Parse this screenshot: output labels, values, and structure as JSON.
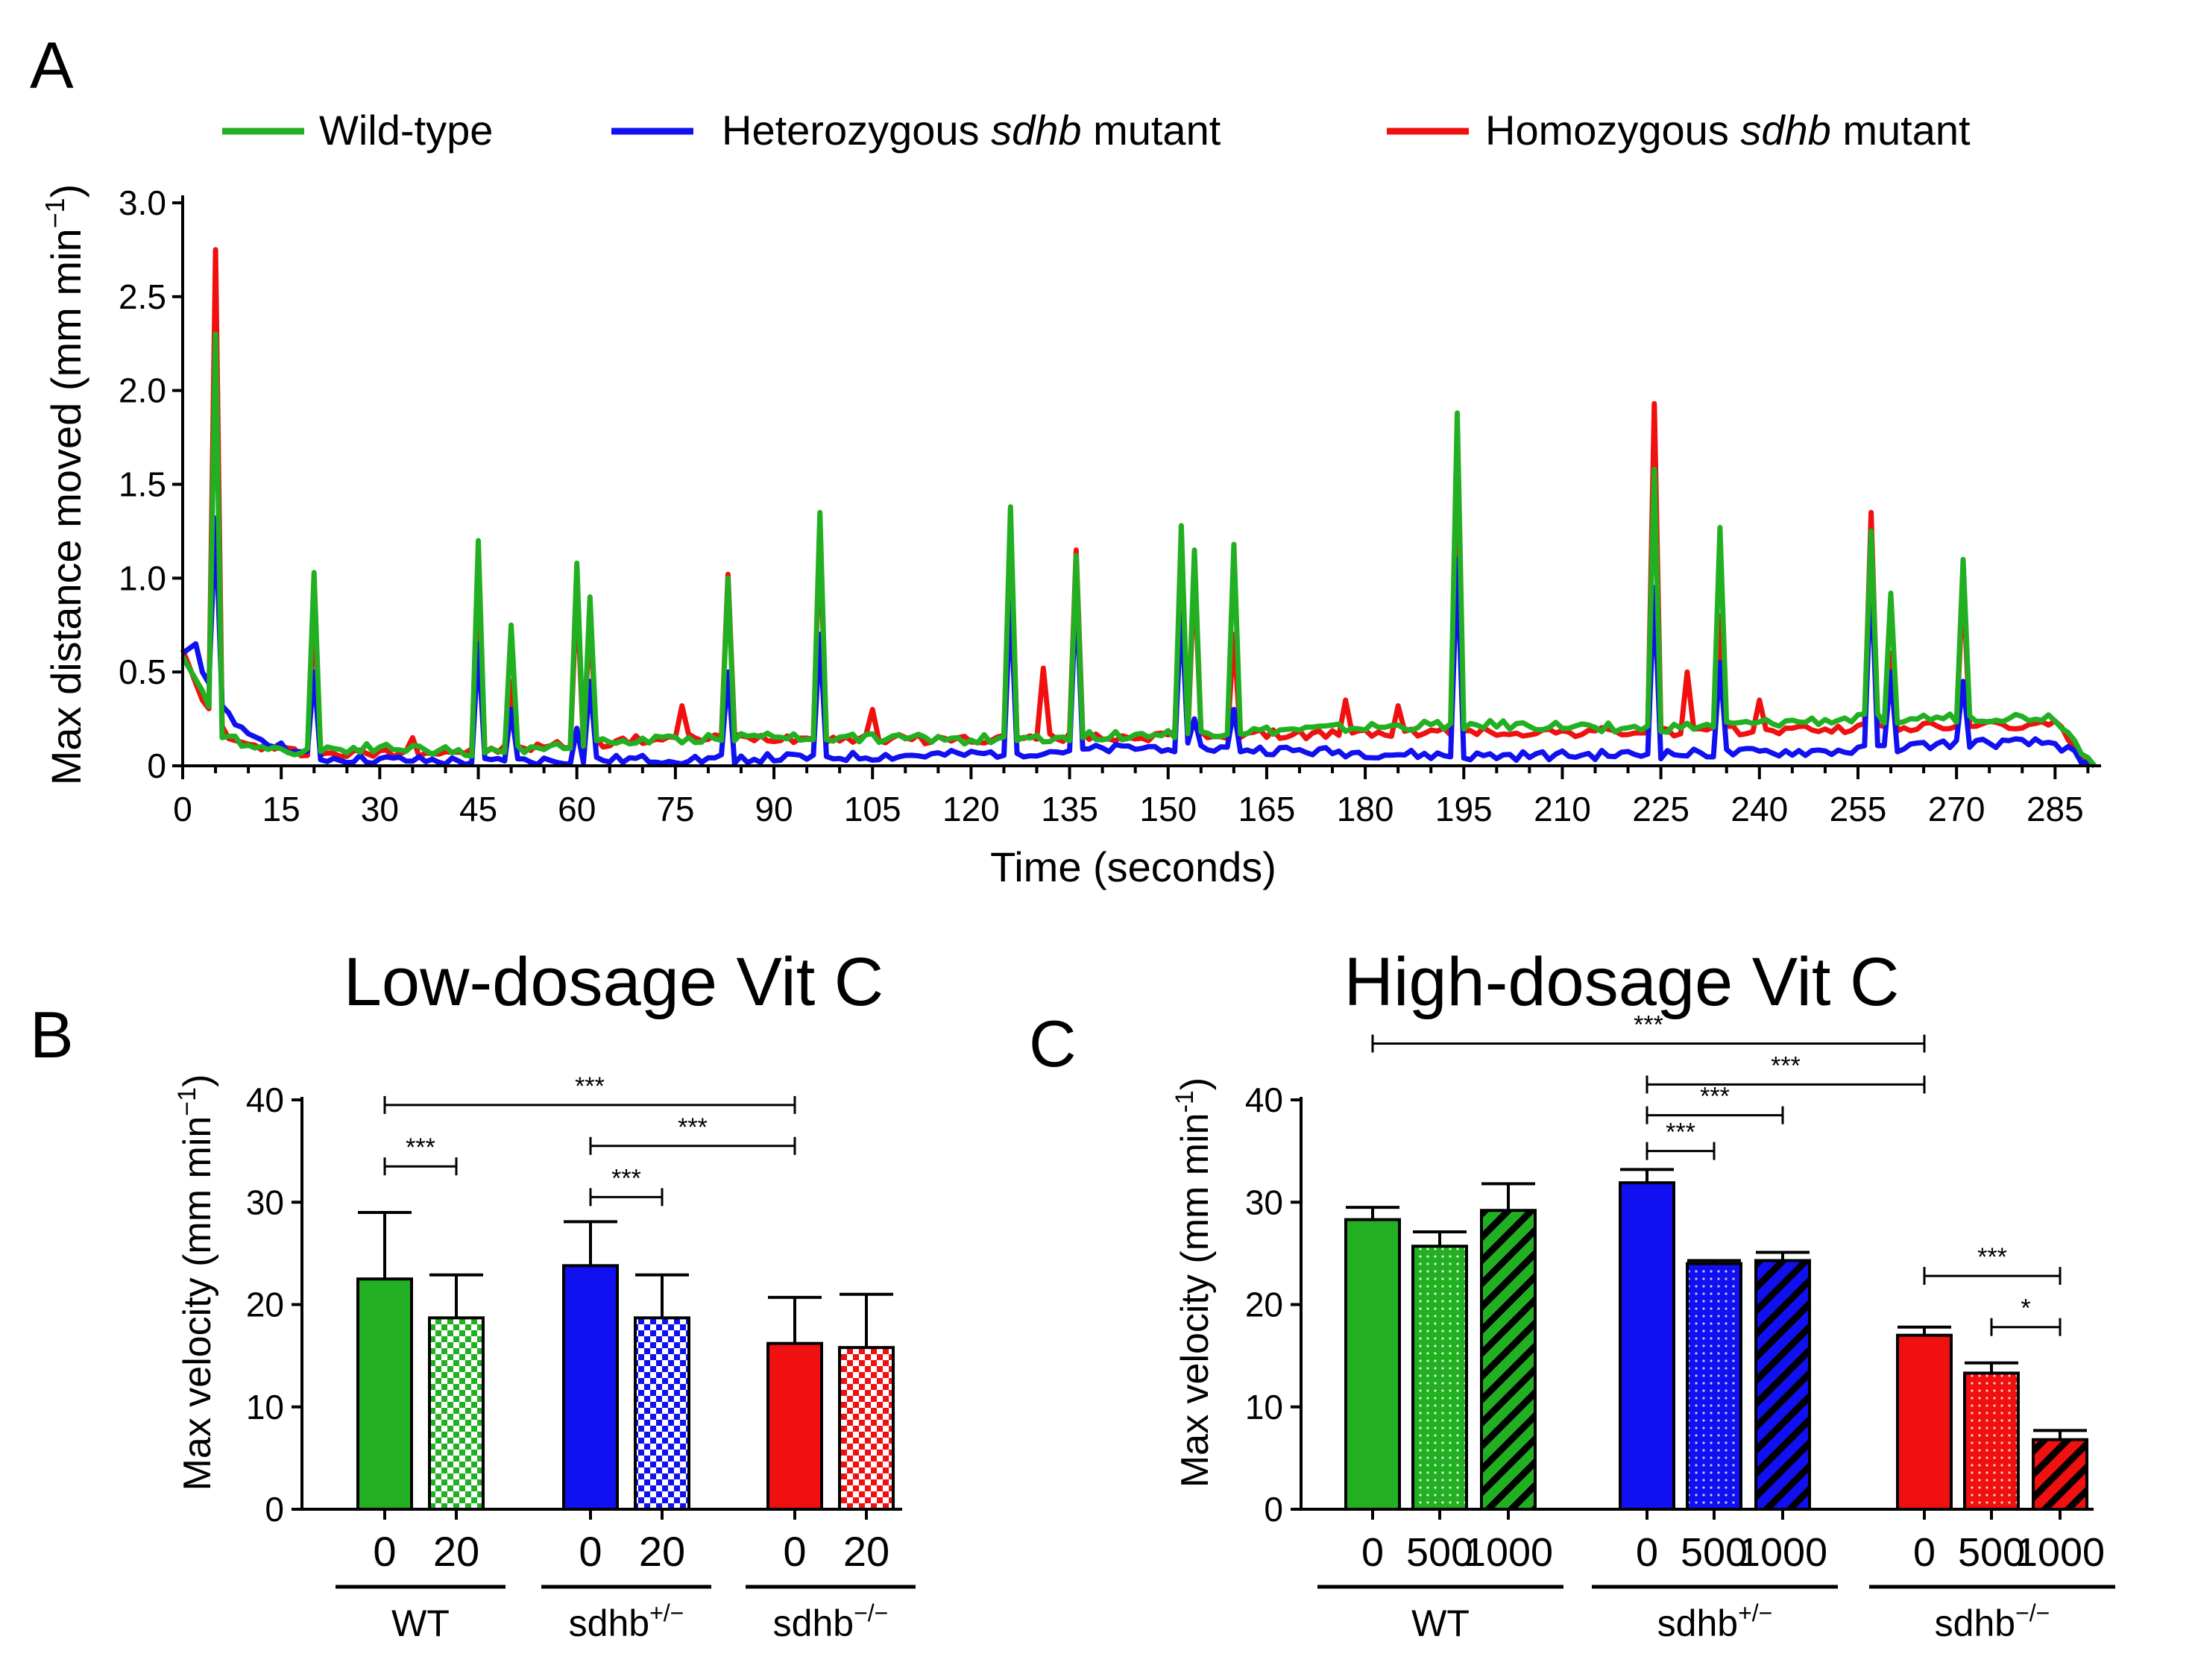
{
  "colors": {
    "wt": "#22b022",
    "het": "#1010f0",
    "hom": "#f01010"
  },
  "panel_labels": {
    "a": "A",
    "b": "B",
    "c": "C"
  },
  "chart_data": [
    {
      "id": "A",
      "type": "line",
      "xlabel": "Time (seconds)",
      "ylabel": "Max distance moved (mm min",
      "ylabel_sup": "−1",
      "ylabel_close": ")",
      "xlim": [
        0,
        292
      ],
      "ylim": [
        0,
        3.0
      ],
      "xticks": [
        "0",
        "15",
        "30",
        "45",
        "60",
        "75",
        "90",
        "105",
        "120",
        "135",
        "150",
        "165",
        "180",
        "195",
        "210",
        "225",
        "240",
        "255",
        "270",
        "285"
      ],
      "yticks": [
        "0",
        "0.5",
        "1.0",
        "1.5",
        "2.0",
        "2.5",
        "3.0"
      ],
      "legend": {
        "position": "top",
        "entries": [
          {
            "key": "wt",
            "pre": "Wild-type",
            "italic": "",
            "post": ""
          },
          {
            "key": "het",
            "pre": "Heterozygous ",
            "italic": "sdhb",
            "post": " mutant"
          },
          {
            "key": "hom",
            "pre": "Homozygous ",
            "italic": "sdhb",
            "post": " mutant"
          }
        ]
      },
      "series": [
        {
          "name": "Homozygous sdhb mutant",
          "key": "hom",
          "baseline": [
            [
              0,
              0.62
            ],
            [
              3,
              0.35
            ],
            [
              8,
              0.12
            ],
            [
              20,
              0.06
            ],
            [
              45,
              0.08
            ],
            [
              75,
              0.15
            ],
            [
              90,
              0.15
            ],
            [
              120,
              0.14
            ],
            [
              150,
              0.16
            ],
            [
              195,
              0.18
            ],
            [
              225,
              0.18
            ],
            [
              255,
              0.2
            ],
            [
              285,
              0.22
            ],
            [
              291,
              0.0
            ]
          ],
          "peaks": [
            [
              5,
              2.75
            ],
            [
              20,
              0.85
            ],
            [
              35,
              0.15
            ],
            [
              45,
              1.05
            ],
            [
              50,
              0.45
            ],
            [
              60,
              0.95
            ],
            [
              62,
              0.8
            ],
            [
              76,
              0.32
            ],
            [
              83,
              1.02
            ],
            [
              97,
              1.25
            ],
            [
              105,
              0.3
            ],
            [
              126,
              1.3
            ],
            [
              131,
              0.52
            ],
            [
              136,
              1.15
            ],
            [
              152,
              1.1
            ],
            [
              154,
              1.05
            ],
            [
              160,
              0.7
            ],
            [
              177,
              0.35
            ],
            [
              185,
              0.32
            ],
            [
              194,
              1.55
            ],
            [
              224,
              1.93
            ],
            [
              229,
              0.5
            ],
            [
              234,
              0.8
            ],
            [
              240,
              0.35
            ],
            [
              257,
              1.35
            ],
            [
              260,
              0.6
            ],
            [
              271,
              1.0
            ]
          ]
        },
        {
          "name": "Heterozygous sdhb mutant",
          "key": "het",
          "baseline": [
            [
              0,
              0.6
            ],
            [
              2,
              0.65
            ],
            [
              3,
              0.5
            ],
            [
              8,
              0.2
            ],
            [
              20,
              0.04
            ],
            [
              45,
              0.02
            ],
            [
              60,
              0.03
            ],
            [
              90,
              0.04
            ],
            [
              120,
              0.06
            ],
            [
              150,
              0.1
            ],
            [
              195,
              0.05
            ],
            [
              225,
              0.06
            ],
            [
              255,
              0.08
            ],
            [
              270,
              0.12
            ],
            [
              285,
              0.12
            ],
            [
              291,
              0.0
            ]
          ],
          "peaks": [
            [
              5,
              1.32
            ],
            [
              20,
              0.5
            ],
            [
              45,
              0.65
            ],
            [
              50,
              0.3
            ],
            [
              60,
              0.2
            ],
            [
              62,
              0.45
            ],
            [
              83,
              0.5
            ],
            [
              97,
              0.7
            ],
            [
              126,
              0.9
            ],
            [
              136,
              0.95
            ],
            [
              152,
              0.85
            ],
            [
              154,
              0.25
            ],
            [
              160,
              0.3
            ],
            [
              194,
              1.1
            ],
            [
              224,
              0.95
            ],
            [
              234,
              0.55
            ],
            [
              257,
              1.05
            ],
            [
              260,
              0.5
            ],
            [
              271,
              0.45
            ]
          ]
        },
        {
          "name": "Wild-type",
          "key": "wt",
          "baseline": [
            [
              0,
              0.58
            ],
            [
              3,
              0.4
            ],
            [
              6,
              0.15
            ],
            [
              15,
              0.08
            ],
            [
              30,
              0.1
            ],
            [
              45,
              0.07
            ],
            [
              60,
              0.12
            ],
            [
              90,
              0.16
            ],
            [
              120,
              0.14
            ],
            [
              150,
              0.17
            ],
            [
              195,
              0.22
            ],
            [
              225,
              0.2
            ],
            [
              255,
              0.25
            ],
            [
              285,
              0.26
            ],
            [
              291,
              0.0
            ]
          ],
          "peaks": [
            [
              5,
              2.3
            ],
            [
              20,
              1.03
            ],
            [
              45,
              1.2
            ],
            [
              50,
              0.75
            ],
            [
              60,
              1.08
            ],
            [
              62,
              0.9
            ],
            [
              83,
              1.0
            ],
            [
              97,
              1.35
            ],
            [
              126,
              1.38
            ],
            [
              136,
              1.12
            ],
            [
              152,
              1.28
            ],
            [
              154,
              1.15
            ],
            [
              160,
              1.18
            ],
            [
              194,
              1.88
            ],
            [
              224,
              1.58
            ],
            [
              234,
              1.27
            ],
            [
              257,
              1.25
            ],
            [
              260,
              0.92
            ],
            [
              271,
              1.1
            ]
          ]
        }
      ]
    },
    {
      "id": "B",
      "type": "bar",
      "title": "Low-dosage Vit C",
      "ylabel": "Max velocity (mm min",
      "ylabel_sup": "−1",
      "ylabel_close": ")",
      "ylim": [
        0,
        40
      ],
      "yticks": [
        "0",
        "10",
        "20",
        "30",
        "40"
      ],
      "groups": [
        {
          "label": "WT",
          "sup": "",
          "color_key": "wt"
        },
        {
          "label": "sdhb",
          "sup": "+/−",
          "color_key": "het"
        },
        {
          "label": "sdhb",
          "sup": "−/−",
          "color_key": "hom"
        }
      ],
      "bars": [
        {
          "group": 0,
          "dose": "0",
          "value": 22.5,
          "error": 6.5,
          "pattern": "solid"
        },
        {
          "group": 0,
          "dose": "20",
          "value": 18.7,
          "error": 4.2,
          "pattern": "checker"
        },
        {
          "group": 1,
          "dose": "0",
          "value": 23.8,
          "error": 4.3,
          "pattern": "solid"
        },
        {
          "group": 1,
          "dose": "20",
          "value": 18.7,
          "error": 4.2,
          "pattern": "checker"
        },
        {
          "group": 2,
          "dose": "0",
          "value": 16.2,
          "error": 4.5,
          "pattern": "solid"
        },
        {
          "group": 2,
          "dose": "20",
          "value": 15.8,
          "error": 5.2,
          "pattern": "checker"
        }
      ],
      "significance": [
        {
          "from": 0,
          "to": 4,
          "label": "***",
          "level": 39.5
        },
        {
          "from": 0,
          "to": 1,
          "label": "***",
          "level": 33.5
        },
        {
          "from": 2,
          "to": 4,
          "label": "***",
          "level": 35.5
        },
        {
          "from": 2,
          "to": 3,
          "label": "***",
          "level": 30.5
        }
      ]
    },
    {
      "id": "C",
      "type": "bar",
      "title": "High-dosage Vit C",
      "ylabel": "Max velocity (mm min",
      "ylabel_sup": "-1",
      "ylabel_close": ")",
      "ylim": [
        0,
        40
      ],
      "yticks": [
        "0",
        "10",
        "20",
        "30",
        "40"
      ],
      "groups": [
        {
          "label": "WT",
          "sup": "",
          "color_key": "wt"
        },
        {
          "label": "sdhb",
          "sup": "+/−",
          "color_key": "het"
        },
        {
          "label": "sdhb",
          "sup": "−/−",
          "color_key": "hom"
        }
      ],
      "bars": [
        {
          "group": 0,
          "dose": "0",
          "value": 28.3,
          "error": 1.2,
          "pattern": "solid"
        },
        {
          "group": 0,
          "dose": "500",
          "value": 25.7,
          "error": 1.4,
          "pattern": "dots"
        },
        {
          "group": 0,
          "dose": "1000",
          "value": 29.2,
          "error": 2.6,
          "pattern": "stripes"
        },
        {
          "group": 1,
          "dose": "0",
          "value": 31.9,
          "error": 1.3,
          "pattern": "solid"
        },
        {
          "group": 1,
          "dose": "500",
          "value": 24.0,
          "error": 0.3,
          "pattern": "dots"
        },
        {
          "group": 1,
          "dose": "1000",
          "value": 24.3,
          "error": 0.8,
          "pattern": "stripes"
        },
        {
          "group": 2,
          "dose": "0",
          "value": 17.0,
          "error": 0.8,
          "pattern": "solid"
        },
        {
          "group": 2,
          "dose": "500",
          "value": 13.3,
          "error": 1.0,
          "pattern": "dots"
        },
        {
          "group": 2,
          "dose": "1000",
          "value": 6.8,
          "error": 0.9,
          "pattern": "stripes"
        }
      ],
      "significance": [
        {
          "from": 0,
          "to": 6,
          "label": "***",
          "level": 45.5
        },
        {
          "from": 3,
          "to": 6,
          "label": "***",
          "level": 41.5
        },
        {
          "from": 3,
          "to": 5,
          "label": "***",
          "level": 38.5
        },
        {
          "from": 3,
          "to": 4,
          "label": "***",
          "level": 35.0
        },
        {
          "from": 6,
          "to": 8,
          "label": "***",
          "level": 22.8
        },
        {
          "from": 7,
          "to": 8,
          "label": "*",
          "level": 17.8
        }
      ]
    }
  ]
}
